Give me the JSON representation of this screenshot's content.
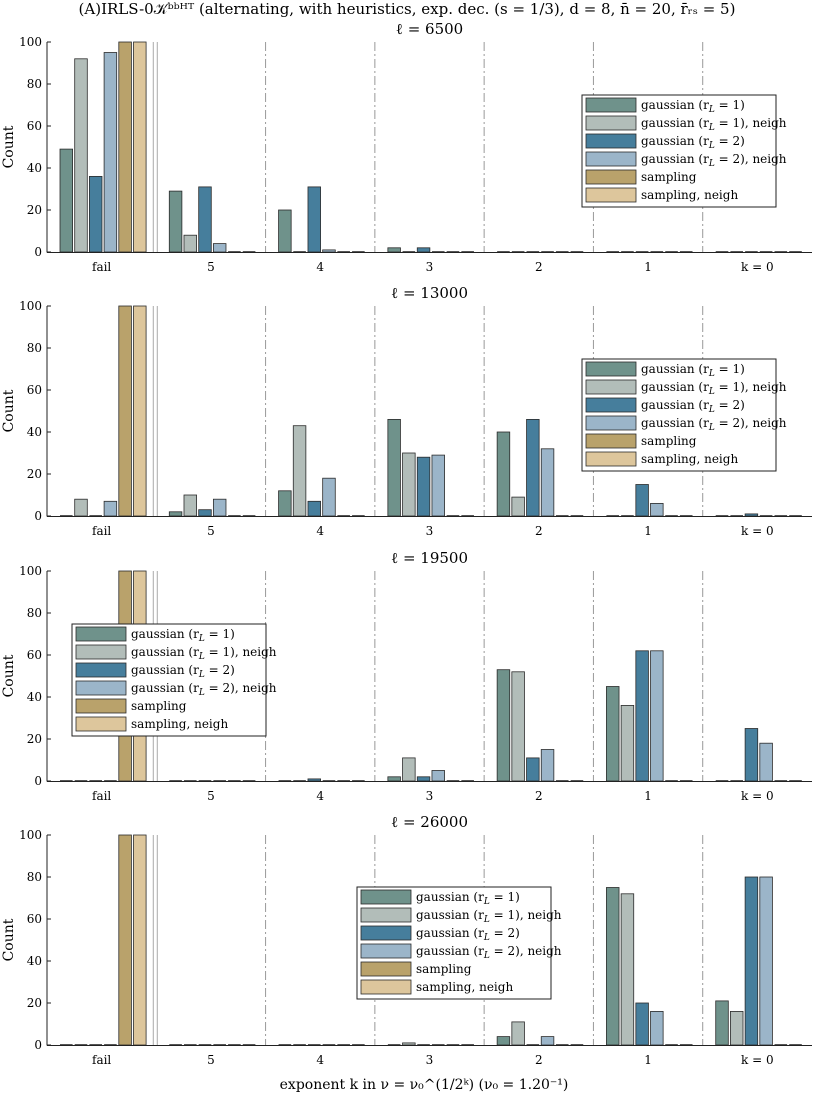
{
  "figure": {
    "suptitle": "(A)IRLS-0𝒦ᵇᵇᴴᵀ (alternating, with heuristics, exp. dec. (s = 1/3), d = 8, n̄ = 20, r̄ᵣₛ = 5)",
    "xlabel": "exponent k in ν = ν₀^(1/2ᵏ) (ν₀ = 1.20⁻¹)",
    "ylabel": "Count",
    "series_names": [
      "gaussian (r_L = 1)",
      "gaussian (r_L = 1), neigh",
      "gaussian (r_L = 2)",
      "gaussian (r_L = 2), neigh",
      "sampling",
      "sampling, neigh"
    ],
    "legend_labels": [
      "gaussian (r",
      "gaussian (r",
      "gaussian (r",
      "gaussian (r",
      "sampling",
      "sampling, neigh"
    ],
    "legend_sub": [
      "L",
      "L",
      "L",
      "L",
      "",
      ""
    ],
    "legend_tail": [
      " = 1)",
      " = 1), neigh",
      " = 2)",
      " = 2), neigh",
      "",
      ""
    ],
    "colors": [
      "#6f928b",
      "#b2bdb9",
      "#467e9c",
      "#9bb5c9",
      "#b9a26b",
      "#ddc69c"
    ]
  },
  "chart_data": [
    {
      "type": "bar",
      "title": "ℓ = 6500",
      "categories": [
        "fail",
        "5",
        "4",
        "3",
        "2",
        "1",
        "k = 0"
      ],
      "ylim": [
        0,
        100
      ],
      "yticks": [
        0,
        20,
        40,
        60,
        80,
        100
      ],
      "legend_position": "right",
      "series": [
        {
          "name": "gaussian (r_L = 1)",
          "values": [
            49,
            29,
            20,
            2,
            0,
            0,
            0
          ]
        },
        {
          "name": "gaussian (r_L = 1), neigh",
          "values": [
            92,
            8,
            0,
            0,
            0,
            0,
            0
          ]
        },
        {
          "name": "gaussian (r_L = 2)",
          "values": [
            36,
            31,
            31,
            2,
            0,
            0,
            0
          ]
        },
        {
          "name": "gaussian (r_L = 2), neigh",
          "values": [
            95,
            4,
            1,
            0,
            0,
            0,
            0
          ]
        },
        {
          "name": "sampling",
          "values": [
            100,
            0,
            0,
            0,
            0,
            0,
            0
          ]
        },
        {
          "name": "sampling, neigh",
          "values": [
            100,
            0,
            0,
            0,
            0,
            0,
            0
          ]
        }
      ]
    },
    {
      "type": "bar",
      "title": "ℓ = 13000",
      "categories": [
        "fail",
        "5",
        "4",
        "3",
        "2",
        "1",
        "k = 0"
      ],
      "ylim": [
        0,
        100
      ],
      "yticks": [
        0,
        20,
        40,
        60,
        80,
        100
      ],
      "legend_position": "right",
      "series": [
        {
          "name": "gaussian (r_L = 1)",
          "values": [
            0,
            2,
            12,
            46,
            40,
            0,
            0
          ]
        },
        {
          "name": "gaussian (r_L = 1), neigh",
          "values": [
            8,
            10,
            43,
            30,
            9,
            0,
            0
          ]
        },
        {
          "name": "gaussian (r_L = 2)",
          "values": [
            0,
            3,
            7,
            28,
            46,
            15,
            1
          ]
        },
        {
          "name": "gaussian (r_L = 2), neigh",
          "values": [
            7,
            8,
            18,
            29,
            32,
            6,
            0
          ]
        },
        {
          "name": "sampling",
          "values": [
            100,
            0,
            0,
            0,
            0,
            0,
            0
          ]
        },
        {
          "name": "sampling, neigh",
          "values": [
            100,
            0,
            0,
            0,
            0,
            0,
            0
          ]
        }
      ]
    },
    {
      "type": "bar",
      "title": "ℓ = 19500",
      "categories": [
        "fail",
        "5",
        "4",
        "3",
        "2",
        "1",
        "k = 0"
      ],
      "ylim": [
        0,
        100
      ],
      "yticks": [
        0,
        20,
        40,
        60,
        80,
        100
      ],
      "legend_position": "left",
      "series": [
        {
          "name": "gaussian (r_L = 1)",
          "values": [
            0,
            0,
            0,
            2,
            53,
            45,
            0
          ]
        },
        {
          "name": "gaussian (r_L = 1), neigh",
          "values": [
            0,
            0,
            0,
            11,
            52,
            36,
            0
          ]
        },
        {
          "name": "gaussian (r_L = 2)",
          "values": [
            0,
            0,
            1,
            2,
            11,
            62,
            25
          ]
        },
        {
          "name": "gaussian (r_L = 2), neigh",
          "values": [
            0,
            0,
            0,
            5,
            15,
            62,
            18
          ]
        },
        {
          "name": "sampling",
          "values": [
            100,
            0,
            0,
            0,
            0,
            0,
            0
          ]
        },
        {
          "name": "sampling, neigh",
          "values": [
            100,
            0,
            0,
            0,
            0,
            0,
            0
          ]
        }
      ]
    },
    {
      "type": "bar",
      "title": "ℓ = 26000",
      "categories": [
        "fail",
        "5",
        "4",
        "3",
        "2",
        "1",
        "k = 0"
      ],
      "ylim": [
        0,
        100
      ],
      "yticks": [
        0,
        20,
        40,
        60,
        80,
        100
      ],
      "legend_position": "center",
      "series": [
        {
          "name": "gaussian (r_L = 1)",
          "values": [
            0,
            0,
            0,
            0,
            4,
            75,
            21
          ]
        },
        {
          "name": "gaussian (r_L = 1), neigh",
          "values": [
            0,
            0,
            0,
            1,
            11,
            72,
            16
          ]
        },
        {
          "name": "gaussian (r_L = 2)",
          "values": [
            0,
            0,
            0,
            0,
            0,
            20,
            80
          ]
        },
        {
          "name": "gaussian (r_L = 2), neigh",
          "values": [
            0,
            0,
            0,
            0,
            4,
            16,
            80
          ]
        },
        {
          "name": "sampling",
          "values": [
            100,
            0,
            0,
            0,
            0,
            0,
            0
          ]
        },
        {
          "name": "sampling, neigh",
          "values": [
            100,
            0,
            0,
            0,
            0,
            0,
            0
          ]
        }
      ]
    }
  ]
}
